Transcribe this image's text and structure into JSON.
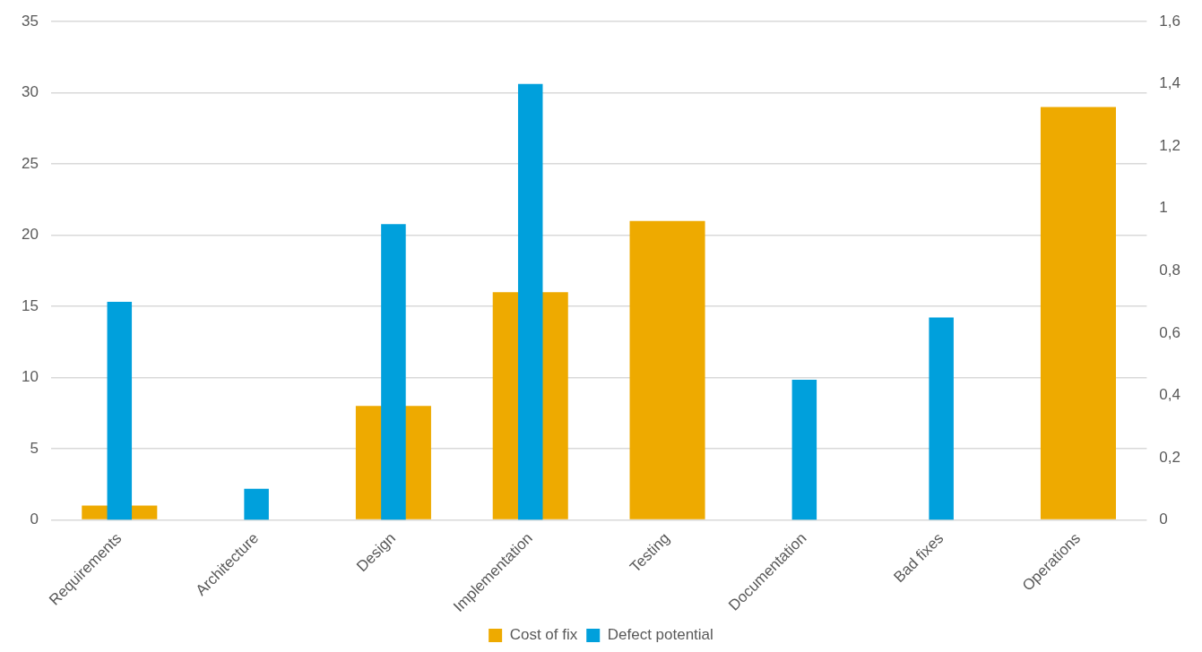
{
  "chart_data": {
    "type": "bar",
    "categories": [
      "Requirements",
      "Architecture",
      "Design",
      "Implementation",
      "Testing",
      "Documentation",
      "Bad fixes",
      "Operations"
    ],
    "series": [
      {
        "name": "Cost of fix",
        "color": "#eeaa00",
        "values": [
          1,
          null,
          8,
          16,
          21,
          null,
          null,
          29
        ]
      },
      {
        "name": "Defect potential",
        "color": "#00a0dc",
        "axis": "y2",
        "values": [
          0.7,
          0.1,
          0.95,
          1.4,
          null,
          0.45,
          0.65,
          null
        ]
      }
    ],
    "ylim": [
      0,
      35
    ],
    "yticks": [
      0,
      5,
      10,
      15,
      20,
      25,
      30,
      35
    ],
    "y2lim": [
      0,
      1.6
    ],
    "y2ticks": [
      0,
      {
        "value": 0.2,
        "label": "0,2"
      },
      {
        "value": 0.4,
        "label": "0,4"
      },
      {
        "value": 0.6,
        "label": "0,6"
      },
      {
        "value": 0.8,
        "label": "0,8"
      },
      {
        "value": 1,
        "label": "1"
      },
      {
        "value": 1.2,
        "label": "1,2"
      },
      {
        "value": 1.4,
        "label": "1,4"
      },
      {
        "value": 1.6,
        "label": "1,6"
      }
    ],
    "grid": "y",
    "legend": "bottom"
  }
}
